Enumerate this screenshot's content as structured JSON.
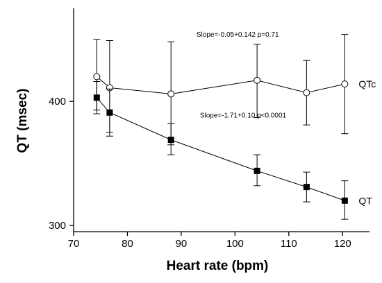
{
  "chart_data": {
    "type": "scatter",
    "xlabel": "Heart rate (bpm)",
    "ylabel": "QT (msec)",
    "xlim": [
      70,
      125
    ],
    "ylim": [
      295,
      475
    ],
    "x_ticks": [
      70,
      80,
      90,
      100,
      110,
      120
    ],
    "y_ticks": [
      300,
      400
    ],
    "series": [
      {
        "name": "QTc",
        "marker": "circle-open",
        "points": [
          {
            "x": 74.3,
            "y": 420,
            "err_lo": 393,
            "err_hi": 450
          },
          {
            "x": 76.7,
            "y": 411,
            "err_lo": 375,
            "err_hi": 449
          },
          {
            "x": 88.1,
            "y": 406,
            "err_lo": 365,
            "err_hi": 448
          },
          {
            "x": 104.1,
            "y": 417,
            "err_lo": 387,
            "err_hi": 446
          },
          {
            "x": 113.3,
            "y": 407,
            "err_lo": 381,
            "err_hi": 433
          },
          {
            "x": 120.4,
            "y": 414,
            "err_lo": 374,
            "err_hi": 454
          }
        ]
      },
      {
        "name": "QT",
        "marker": "square-filled",
        "points": [
          {
            "x": 74.3,
            "y": 403,
            "err_lo": 390,
            "err_hi": 416
          },
          {
            "x": 76.7,
            "y": 391,
            "err_lo": 372,
            "err_hi": 410
          },
          {
            "x": 88.1,
            "y": 369,
            "err_lo": 357,
            "err_hi": 382
          },
          {
            "x": 104.1,
            "y": 344,
            "err_lo": 332,
            "err_hi": 357
          },
          {
            "x": 113.3,
            "y": 331,
            "err_lo": 319,
            "err_hi": 343
          },
          {
            "x": 120.4,
            "y": 320,
            "err_lo": 305,
            "err_hi": 336
          }
        ]
      }
    ],
    "annotations": [
      {
        "text": "Slope=-0.05+0.142 p=0.71",
        "x": 100.5,
        "y": 452
      },
      {
        "text": "Slope=-1.71+0.10 p<0.0001",
        "x": 101.5,
        "y": 387
      }
    ]
  }
}
